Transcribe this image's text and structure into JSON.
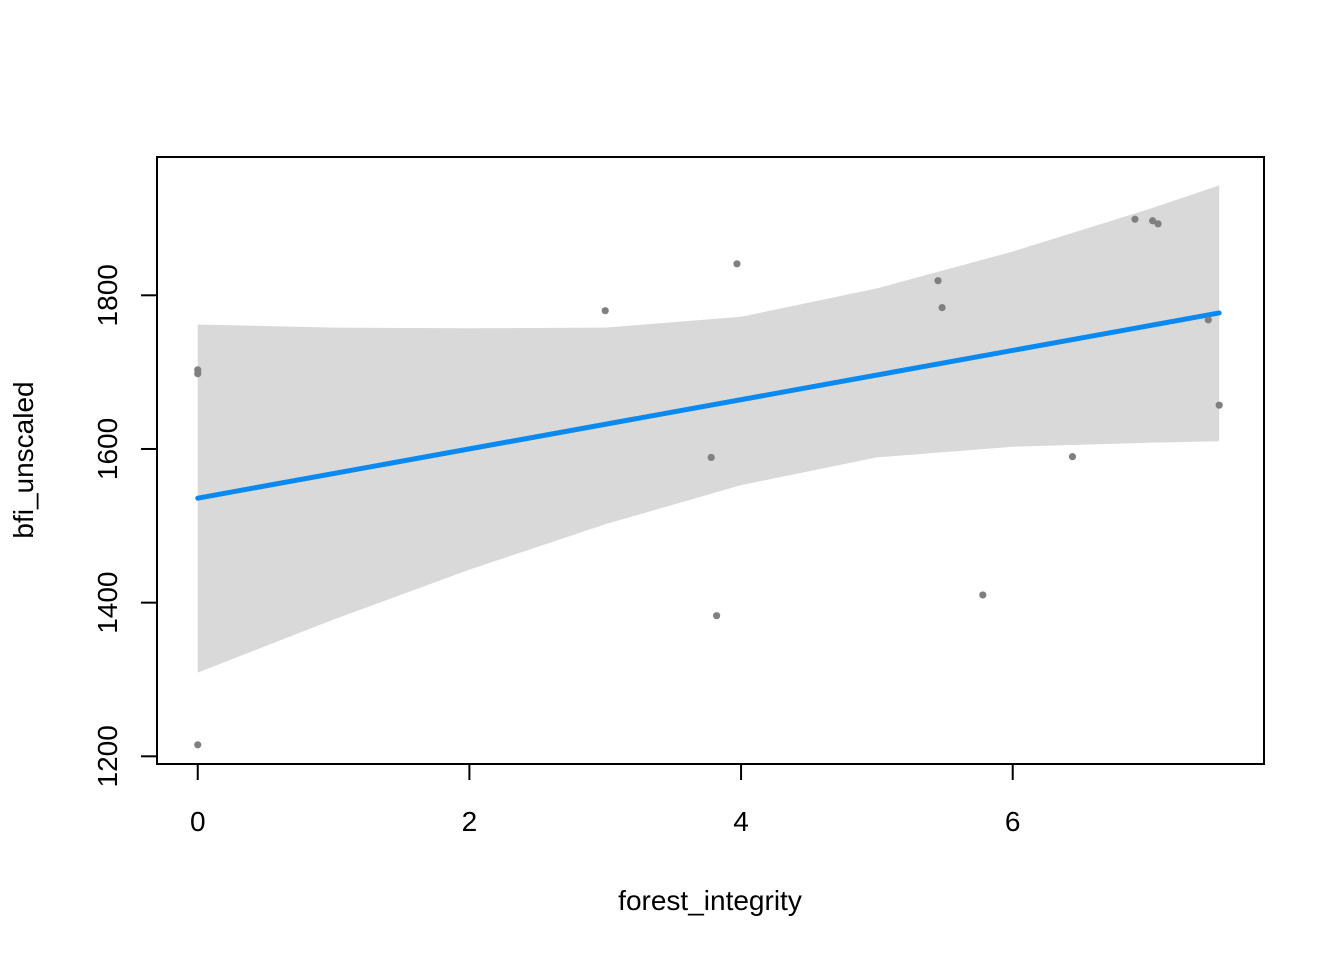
{
  "chart_data": {
    "type": "scatter",
    "xlabel": "forest_integrity",
    "ylabel": "bfi_unscaled",
    "xlim": [
      -0.3,
      7.85
    ],
    "ylim": [
      1190,
      1980
    ],
    "x_ticks": [
      0,
      2,
      4,
      6
    ],
    "y_ticks": [
      1200,
      1400,
      1600,
      1800
    ],
    "grid": false,
    "legend": "none",
    "colors": {
      "points": "#808080",
      "fit_line": "#0a8af0",
      "confidence_band": "#d9d9d9",
      "axes": "#000000"
    },
    "points": [
      {
        "x": 0.0,
        "y": 1215
      },
      {
        "x": 0.0,
        "y": 1698
      },
      {
        "x": 0.0,
        "y": 1703
      },
      {
        "x": 3.0,
        "y": 1780
      },
      {
        "x": 3.78,
        "y": 1589
      },
      {
        "x": 3.82,
        "y": 1383
      },
      {
        "x": 3.97,
        "y": 1841
      },
      {
        "x": 5.45,
        "y": 1819
      },
      {
        "x": 5.48,
        "y": 1784
      },
      {
        "x": 5.78,
        "y": 1410
      },
      {
        "x": 6.44,
        "y": 1590
      },
      {
        "x": 6.9,
        "y": 1899
      },
      {
        "x": 7.03,
        "y": 1897
      },
      {
        "x": 7.07,
        "y": 1893
      },
      {
        "x": 7.44,
        "y": 1768
      },
      {
        "x": 7.52,
        "y": 1657
      }
    ],
    "fit_line": {
      "x": [
        0.0,
        7.52
      ],
      "y": [
        1536,
        1777
      ]
    },
    "confidence_band": [
      {
        "x": 0.0,
        "lower": 1309,
        "upper": 1762
      },
      {
        "x": 1.0,
        "lower": 1378,
        "upper": 1758
      },
      {
        "x": 2.0,
        "lower": 1443,
        "upper": 1757
      },
      {
        "x": 3.0,
        "lower": 1502,
        "upper": 1758
      },
      {
        "x": 4.0,
        "lower": 1553,
        "upper": 1772
      },
      {
        "x": 5.0,
        "lower": 1589,
        "upper": 1809
      },
      {
        "x": 6.0,
        "lower": 1603,
        "upper": 1857
      },
      {
        "x": 7.0,
        "lower": 1608,
        "upper": 1912
      },
      {
        "x": 7.52,
        "lower": 1610,
        "upper": 1943
      }
    ]
  }
}
